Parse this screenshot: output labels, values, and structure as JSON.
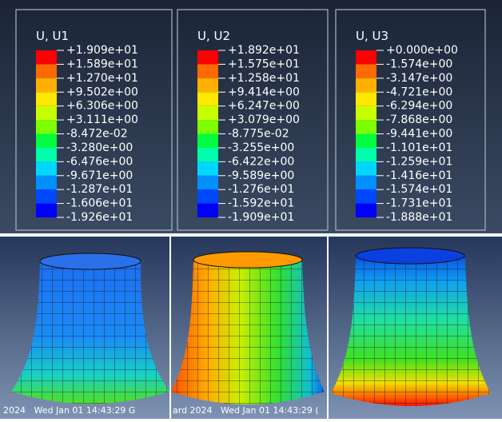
{
  "legends": [
    {
      "title": "U, U1",
      "labels": [
        "+1.909e+01",
        "+1.589e+01",
        "+1.270e+01",
        "+9.502e+00",
        "+6.306e+00",
        "+3.111e+00",
        "-8.472e-02",
        "-3.280e+00",
        "-6.476e+00",
        "-9.671e+00",
        "-1.287e+01",
        "-1.606e+01",
        "-1.926e+01"
      ]
    },
    {
      "title": "U, U2",
      "labels": [
        "+1.892e+01",
        "+1.575e+01",
        "+1.258e+01",
        "+9.414e+00",
        "+6.247e+00",
        "+3.079e+00",
        "-8.775e-02",
        "-3.255e+00",
        "-6.422e+00",
        "-9.589e+00",
        "-1.276e+01",
        "-1.592e+01",
        "-1.909e+01"
      ]
    },
    {
      "title": "U, U3",
      "labels": [
        "+0.000e+00",
        "-1.574e+00",
        "-3.147e+00",
        "-4.721e+00",
        "-6.294e+00",
        "-7.868e+00",
        "-9.441e+00",
        "-1.101e+01",
        "-1.259e+01",
        "-1.416e+01",
        "-1.574e+01",
        "-1.731e+01",
        "-1.888e+01"
      ]
    }
  ],
  "timestamps": [
    "2024   Wed Jan 01 14:43:29 G",
    "ard 2024   Wed Jan 01 14:43:29 ("
  ]
}
